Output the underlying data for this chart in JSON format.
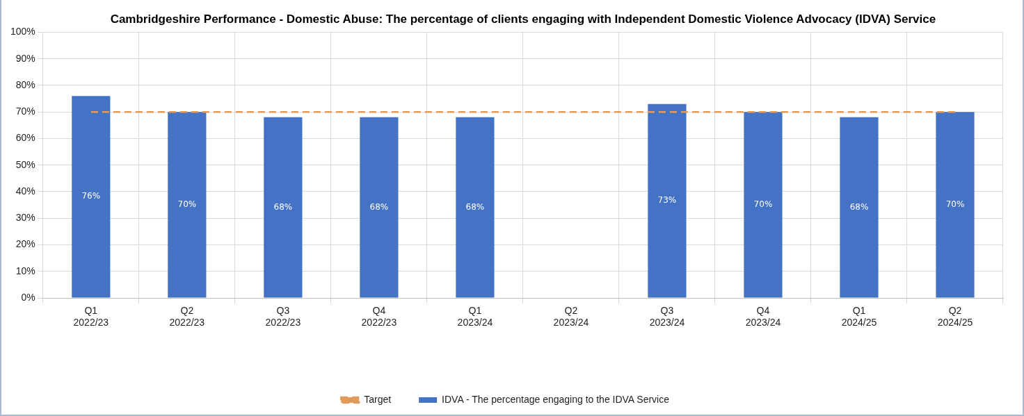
{
  "chart_data": {
    "type": "bar",
    "title": "Cambridgeshire Performance - Domestic Abuse: The percentage of clients engaging with Independent Domestic Violence Advocacy (IDVA) Service",
    "categories": [
      "Q1 2022/23",
      "Q2 2022/23",
      "Q3 2022/23",
      "Q4 2022/23",
      "Q1 2023/24",
      "Q2 2023/24",
      "Q3 2023/24",
      "Q4 2023/24",
      "Q1 2024/25",
      "Q2 2024/25"
    ],
    "series": [
      {
        "name": "IDVA - The percentage engaging to the IDVA Service",
        "color": "#4472c4",
        "values": [
          76,
          70,
          68,
          68,
          68,
          null,
          73,
          70,
          68,
          70
        ]
      },
      {
        "name": "Target",
        "type": "line",
        "color": "#e09a5a",
        "line_style": "dashed",
        "marker": "none",
        "values": [
          70,
          70,
          70,
          70,
          70,
          70,
          70,
          70,
          70,
          70
        ]
      }
    ],
    "ylim": [
      0,
      100
    ],
    "yticks": [
      {
        "value": 0,
        "label": "0%"
      },
      {
        "value": 10,
        "label": "10%"
      },
      {
        "value": 20,
        "label": "20%"
      },
      {
        "value": 30,
        "label": "30%"
      },
      {
        "value": 40,
        "label": "40%"
      },
      {
        "value": 50,
        "label": "50%"
      },
      {
        "value": 60,
        "label": "60%"
      },
      {
        "value": 70,
        "label": "70%"
      },
      {
        "value": 80,
        "label": "80%"
      },
      {
        "value": 90,
        "label": "90%"
      },
      {
        "value": 100,
        "label": "100%"
      }
    ],
    "value_labels": [
      "76%",
      "70%",
      "68%",
      "68%",
      "68%",
      null,
      "73%",
      "70%",
      "68%",
      "70%"
    ],
    "grid": true,
    "legend": "bottom"
  }
}
